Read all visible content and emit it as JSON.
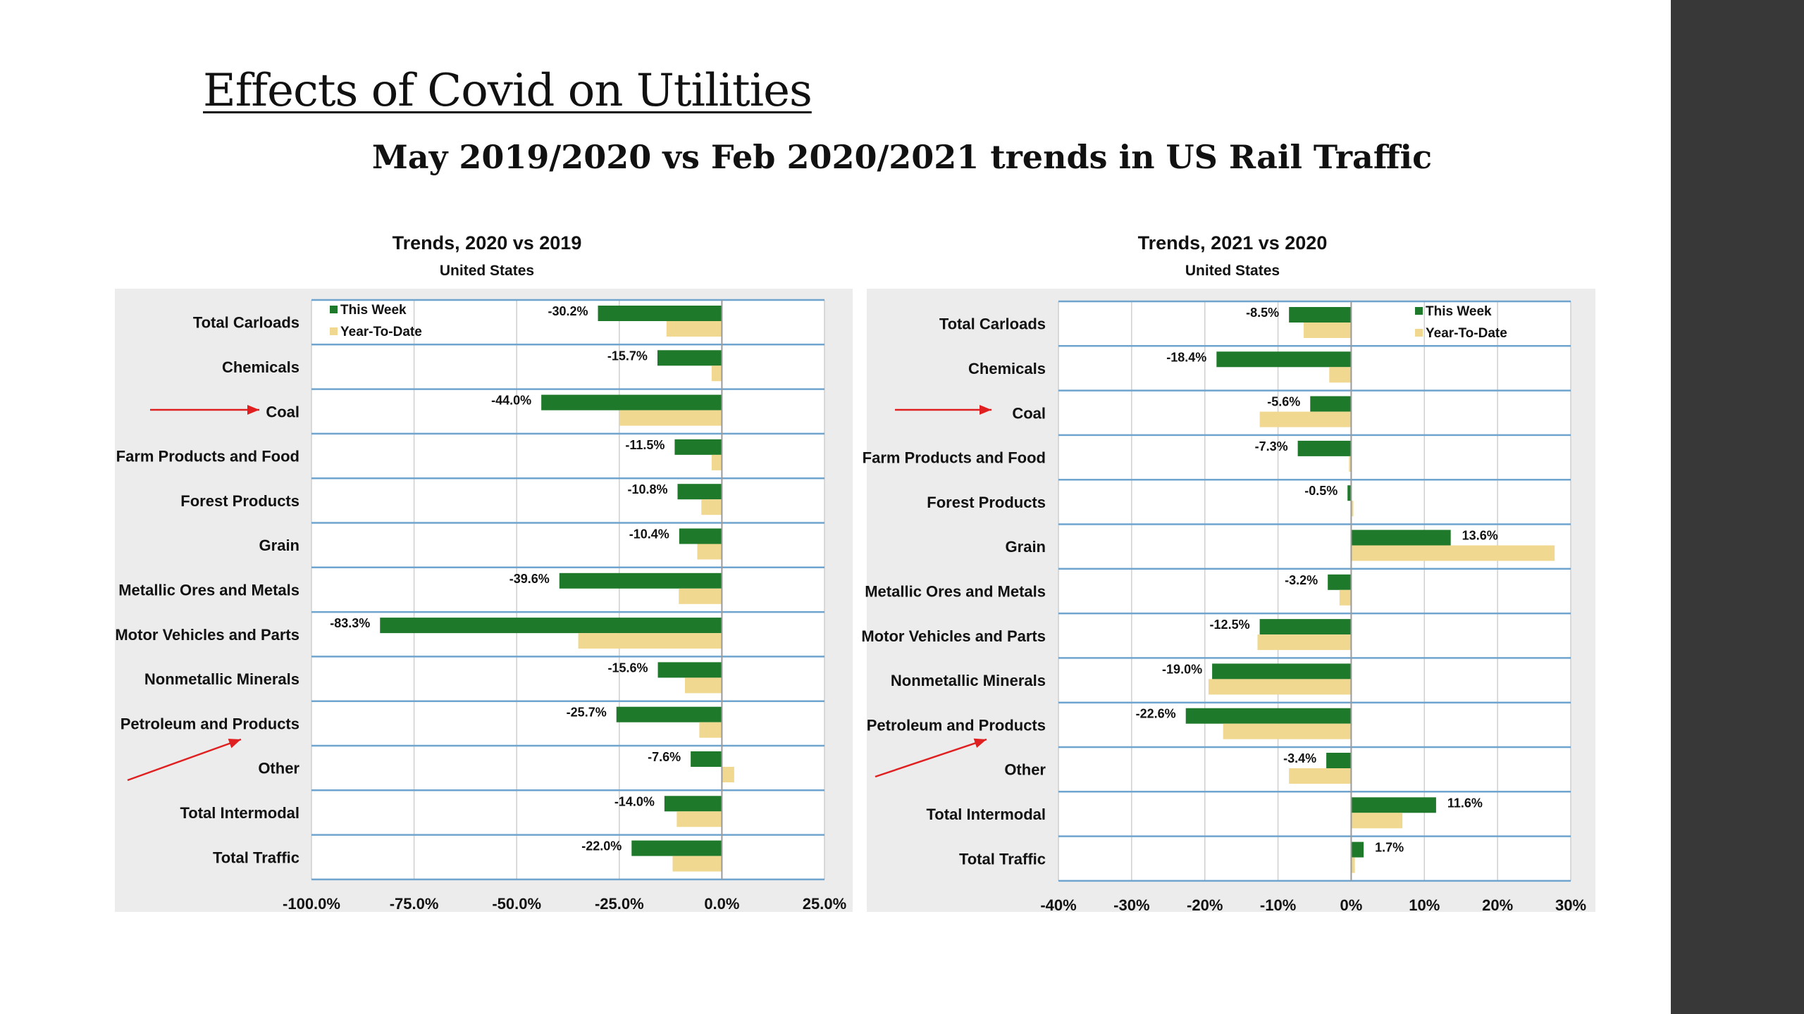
{
  "slide": {
    "title": "Effects of Covid on Utilities",
    "subtitle": "May 2019/2020 vs Feb 2020/2021 trends in US Rail Traffic"
  },
  "colors": {
    "this_week": "#1e7a2a",
    "ytd": "#f1d890",
    "panel_bg": "#ececec",
    "row_line": "#6fa4cf",
    "grid": "#cfcfcf",
    "arrow": "#e02020",
    "sidebar": "#383838"
  },
  "chart_data": [
    {
      "type": "bar",
      "orientation": "horizontal",
      "title": "Trends, 2020 vs 2019",
      "subtitle": "United States",
      "categories": [
        "Total Carloads",
        "Chemicals",
        "Coal",
        "Farm Products and Food",
        "Forest Products",
        "Grain",
        "Metallic Ores and Metals",
        "Motor Vehicles and Parts",
        "Nonmetallic Minerals",
        "Petroleum and Products",
        "Other",
        "Total Intermodal",
        "Total Traffic"
      ],
      "series": [
        {
          "name": "This Week",
          "values": [
            -30.2,
            -15.7,
            -44.0,
            -11.5,
            -10.8,
            -10.4,
            -39.6,
            -83.3,
            -15.6,
            -25.7,
            -7.6,
            -14.0,
            -22.0
          ]
        },
        {
          "name": "Year-To-Date",
          "values": [
            -13.5,
            -2.5,
            -25.0,
            -2.5,
            -5.0,
            -6.0,
            -10.5,
            -35.0,
            -9.0,
            -5.5,
            3.0,
            -11.0,
            -12.0
          ]
        }
      ],
      "data_labels": [
        "-30.2%",
        "-15.7%",
        "-44.0%",
        "-11.5%",
        "-10.8%",
        "-10.4%",
        "-39.6%",
        "-83.3%",
        "-15.6%",
        "-25.7%",
        "-7.6%",
        "-14.0%",
        "-22.0%"
      ],
      "xlim": [
        -100,
        25
      ],
      "ticks": [
        -100,
        -75,
        -50,
        -25,
        0,
        25
      ],
      "tick_labels": [
        "-100.0%",
        "-75.0%",
        "-50.0%",
        "-25.0%",
        "0.0%",
        "25.0%"
      ],
      "legend": [
        "This Week",
        "Year-To-Date"
      ],
      "legend_position": "top-left",
      "highlighted": [
        "Coal",
        "Other"
      ]
    },
    {
      "type": "bar",
      "orientation": "horizontal",
      "title": "Trends, 2021 vs 2020",
      "subtitle": "United States",
      "categories": [
        "Total Carloads",
        "Chemicals",
        "Coal",
        "Farm Products and Food",
        "Forest Products",
        "Grain",
        "Metallic Ores and Metals",
        "Motor Vehicles and Parts",
        "Nonmetallic Minerals",
        "Petroleum and Products",
        "Other",
        "Total Intermodal",
        "Total Traffic"
      ],
      "series": [
        {
          "name": "This Week",
          "values": [
            -8.5,
            -18.4,
            -5.6,
            -7.3,
            -0.5,
            13.6,
            -3.2,
            -12.5,
            -19.0,
            -22.6,
            -3.4,
            11.6,
            1.7
          ]
        },
        {
          "name": "Year-To-Date",
          "values": [
            -6.5,
            -3.0,
            -12.5,
            -0.3,
            0.3,
            27.8,
            -1.6,
            -12.8,
            -19.5,
            -17.5,
            -8.5,
            7.0,
            0.5
          ]
        }
      ],
      "data_labels": [
        "-8.5%",
        "-18.4%",
        "-5.6%",
        "-7.3%",
        "-0.5%",
        "13.6%",
        "-3.2%",
        "-12.5%",
        "-19.0%",
        "-22.6%",
        "-3.4%",
        "11.6%",
        "1.7%"
      ],
      "xlim": [
        -40,
        30
      ],
      "ticks": [
        -40,
        -30,
        -20,
        -10,
        0,
        10,
        20,
        30
      ],
      "tick_labels": [
        "-40%",
        "-30%",
        "-20%",
        "-10%",
        "0%",
        "10%",
        "20%",
        "30%"
      ],
      "legend": [
        "This Week",
        "Year-To-Date"
      ],
      "legend_position": "top-right",
      "highlighted": [
        "Coal",
        "Other"
      ]
    }
  ]
}
